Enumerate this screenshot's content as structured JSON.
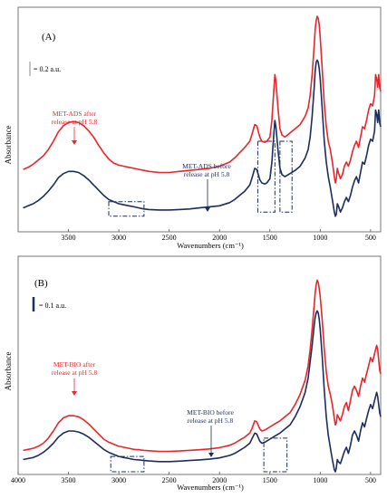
{
  "chart_data": [
    {
      "type": "line",
      "panel_label": "(A)",
      "xlabel": "Wavenumbers (cm⁻¹)",
      "ylabel": "Absorbance",
      "xlim": [
        4000,
        400
      ],
      "x_ticks": [
        3500,
        3000,
        2500,
        2000,
        1500,
        1000,
        500
      ],
      "scale_bar_label": "= 0.2 a.u.",
      "colors": {
        "after": "#e8262b",
        "before": "#1b2d5c",
        "box": "#1b2d5c"
      },
      "series": [
        {
          "key": "after",
          "label": "MET-ADS after release at pH 5.8",
          "label_lines": [
            "MET-ADS after",
            "release at pH 5.8"
          ],
          "x": [
            3950,
            3900,
            3850,
            3800,
            3750,
            3700,
            3650,
            3600,
            3550,
            3500,
            3450,
            3400,
            3350,
            3300,
            3250,
            3200,
            3150,
            3100,
            3050,
            3000,
            2950,
            2900,
            2850,
            2800,
            2750,
            2700,
            2600,
            2500,
            2400,
            2300,
            2200,
            2100,
            2000,
            1900,
            1850,
            1800,
            1750,
            1700,
            1680,
            1650,
            1630,
            1600,
            1580,
            1550,
            1530,
            1500,
            1480,
            1460,
            1450,
            1440,
            1420,
            1400,
            1380,
            1350,
            1300,
            1250,
            1200,
            1150,
            1120,
            1100,
            1080,
            1060,
            1050,
            1040,
            1030,
            1020,
            1010,
            1000,
            980,
            960,
            940,
            920,
            900,
            880,
            860,
            850,
            840,
            830,
            820,
            800,
            780,
            760,
            740,
            720,
            700,
            680,
            660,
            640,
            620,
            600,
            580,
            560,
            540,
            520,
            500,
            480,
            460,
            450,
            440,
            430,
            420,
            410,
            400
          ],
          "y": [
            0.265,
            0.275,
            0.29,
            0.31,
            0.33,
            0.36,
            0.4,
            0.445,
            0.475,
            0.49,
            0.495,
            0.49,
            0.475,
            0.45,
            0.42,
            0.38,
            0.345,
            0.315,
            0.295,
            0.285,
            0.28,
            0.275,
            0.27,
            0.265,
            0.26,
            0.255,
            0.25,
            0.25,
            0.255,
            0.26,
            0.265,
            0.27,
            0.28,
            0.3,
            0.32,
            0.345,
            0.37,
            0.4,
            0.43,
            0.48,
            0.475,
            0.42,
            0.4,
            0.395,
            0.4,
            0.42,
            0.5,
            0.65,
            0.72,
            0.69,
            0.56,
            0.46,
            0.43,
            0.42,
            0.44,
            0.46,
            0.48,
            0.52,
            0.56,
            0.62,
            0.72,
            0.86,
            0.94,
            0.98,
            1.0,
            0.99,
            0.96,
            0.9,
            0.74,
            0.58,
            0.47,
            0.4,
            0.36,
            0.3,
            0.23,
            0.2,
            0.22,
            0.27,
            0.25,
            0.22,
            0.24,
            0.28,
            0.3,
            0.28,
            0.31,
            0.35,
            0.38,
            0.4,
            0.37,
            0.42,
            0.47,
            0.46,
            0.5,
            0.55,
            0.58,
            0.57,
            0.62,
            0.72,
            0.7,
            0.66,
            0.72,
            0.66,
            0.64
          ]
        },
        {
          "key": "before",
          "label": "MET-ADS before release at pH 5.8",
          "label_lines": [
            "MET-ADS before",
            "release at pH 5.8"
          ],
          "x": [
            3950,
            3900,
            3850,
            3800,
            3750,
            3700,
            3650,
            3600,
            3550,
            3500,
            3450,
            3400,
            3350,
            3300,
            3250,
            3200,
            3150,
            3100,
            3050,
            3000,
            2950,
            2900,
            2850,
            2800,
            2750,
            2700,
            2600,
            2500,
            2400,
            2300,
            2200,
            2100,
            2000,
            1900,
            1850,
            1800,
            1750,
            1700,
            1680,
            1650,
            1630,
            1600,
            1580,
            1550,
            1530,
            1500,
            1480,
            1460,
            1450,
            1440,
            1420,
            1400,
            1380,
            1350,
            1300,
            1250,
            1200,
            1150,
            1120,
            1100,
            1080,
            1060,
            1050,
            1040,
            1030,
            1020,
            1010,
            1000,
            980,
            960,
            940,
            920,
            900,
            880,
            860,
            850,
            840,
            830,
            820,
            800,
            780,
            760,
            740,
            720,
            700,
            680,
            660,
            640,
            620,
            600,
            580,
            560,
            540,
            520,
            500,
            480,
            460,
            450,
            440,
            430,
            420,
            410,
            400
          ],
          "y": [
            0.08,
            0.09,
            0.1,
            0.115,
            0.135,
            0.16,
            0.19,
            0.225,
            0.245,
            0.255,
            0.255,
            0.25,
            0.235,
            0.215,
            0.19,
            0.165,
            0.14,
            0.12,
            0.11,
            0.1,
            0.095,
            0.09,
            0.085,
            0.08,
            0.075,
            0.072,
            0.07,
            0.07,
            0.072,
            0.075,
            0.08,
            0.085,
            0.09,
            0.105,
            0.12,
            0.14,
            0.16,
            0.19,
            0.22,
            0.27,
            0.265,
            0.215,
            0.2,
            0.195,
            0.2,
            0.22,
            0.3,
            0.44,
            0.5,
            0.47,
            0.36,
            0.27,
            0.24,
            0.23,
            0.245,
            0.26,
            0.28,
            0.32,
            0.36,
            0.42,
            0.52,
            0.66,
            0.74,
            0.78,
            0.79,
            0.78,
            0.75,
            0.7,
            0.55,
            0.4,
            0.3,
            0.23,
            0.18,
            0.12,
            0.06,
            0.04,
            0.05,
            0.1,
            0.09,
            0.06,
            0.08,
            0.11,
            0.13,
            0.11,
            0.14,
            0.18,
            0.21,
            0.23,
            0.2,
            0.25,
            0.3,
            0.29,
            0.33,
            0.38,
            0.41,
            0.4,
            0.45,
            0.55,
            0.53,
            0.49,
            0.55,
            0.49,
            0.47
          ]
        }
      ],
      "boxes": [
        {
          "x": [
            3100,
            2750
          ],
          "y": [
            0.04,
            0.11
          ]
        },
        {
          "x": [
            1620,
            1450
          ],
          "y": [
            0.06,
            0.4
          ]
        },
        {
          "x": [
            1400,
            1280
          ],
          "y": [
            0.06,
            0.4
          ]
        }
      ]
    },
    {
      "type": "line",
      "panel_label": "(B)",
      "xlabel": "Wavenumbers (cm⁻¹)",
      "ylabel": "Absorbance",
      "xlim": [
        4000,
        400
      ],
      "x_ticks": [
        4000,
        3500,
        3000,
        2500,
        2000,
        1500,
        1000,
        500
      ],
      "scale_bar_label": "= 0.1 a.u.",
      "colors": {
        "after": "#e8262b",
        "before": "#1b2d5c",
        "box": "#1b2d5c"
      },
      "series": [
        {
          "key": "after",
          "label": "MET-BIO after release at pH 5.8",
          "label_lines": [
            "MET-BIO after",
            "release at pH 5.8"
          ],
          "x": [
            3950,
            3900,
            3850,
            3800,
            3750,
            3700,
            3650,
            3600,
            3550,
            3500,
            3450,
            3400,
            3350,
            3300,
            3250,
            3200,
            3150,
            3100,
            3050,
            3000,
            2950,
            2900,
            2850,
            2800,
            2750,
            2700,
            2600,
            2500,
            2400,
            2300,
            2200,
            2100,
            2000,
            1900,
            1850,
            1800,
            1750,
            1700,
            1680,
            1650,
            1630,
            1600,
            1580,
            1550,
            1500,
            1450,
            1400,
            1350,
            1300,
            1250,
            1200,
            1150,
            1120,
            1100,
            1080,
            1060,
            1050,
            1040,
            1030,
            1020,
            1010,
            1000,
            980,
            960,
            940,
            920,
            900,
            880,
            860,
            850,
            840,
            830,
            820,
            800,
            780,
            760,
            740,
            720,
            700,
            680,
            660,
            640,
            620,
            600,
            580,
            560,
            540,
            520,
            500,
            480,
            460,
            440,
            430,
            420,
            410,
            400
          ],
          "y": [
            0.105,
            0.11,
            0.115,
            0.125,
            0.14,
            0.165,
            0.2,
            0.24,
            0.265,
            0.275,
            0.275,
            0.27,
            0.255,
            0.235,
            0.21,
            0.185,
            0.16,
            0.145,
            0.135,
            0.125,
            0.12,
            0.115,
            0.11,
            0.108,
            0.105,
            0.103,
            0.1,
            0.1,
            0.102,
            0.105,
            0.108,
            0.112,
            0.118,
            0.13,
            0.14,
            0.155,
            0.17,
            0.19,
            0.21,
            0.25,
            0.245,
            0.21,
            0.2,
            0.205,
            0.22,
            0.235,
            0.25,
            0.27,
            0.29,
            0.33,
            0.38,
            0.45,
            0.52,
            0.6,
            0.7,
            0.82,
            0.88,
            0.92,
            0.94,
            0.93,
            0.9,
            0.86,
            0.74,
            0.6,
            0.49,
            0.42,
            0.38,
            0.33,
            0.26,
            0.23,
            0.24,
            0.28,
            0.27,
            0.25,
            0.28,
            0.32,
            0.34,
            0.3,
            0.35,
            0.4,
            0.42,
            0.4,
            0.37,
            0.42,
            0.46,
            0.44,
            0.48,
            0.52,
            0.56,
            0.54,
            0.58,
            0.62,
            0.6,
            0.55,
            0.5,
            0.48
          ]
        },
        {
          "key": "before",
          "label": "MET-BIO before release at pH 5.8",
          "label_lines": [
            "MET-BIO before",
            "release at pH 5.8"
          ],
          "x": [
            3950,
            3900,
            3850,
            3800,
            3750,
            3700,
            3650,
            3600,
            3550,
            3500,
            3450,
            3400,
            3350,
            3300,
            3250,
            3200,
            3150,
            3100,
            3050,
            3000,
            2950,
            2900,
            2850,
            2800,
            2750,
            2700,
            2600,
            2500,
            2400,
            2300,
            2200,
            2100,
            2000,
            1900,
            1850,
            1800,
            1750,
            1700,
            1680,
            1650,
            1630,
            1600,
            1580,
            1550,
            1500,
            1450,
            1400,
            1350,
            1300,
            1250,
            1200,
            1150,
            1120,
            1100,
            1080,
            1060,
            1050,
            1040,
            1030,
            1020,
            1010,
            1000,
            980,
            960,
            940,
            920,
            900,
            880,
            860,
            850,
            840,
            830,
            820,
            800,
            780,
            760,
            740,
            720,
            700,
            680,
            660,
            640,
            620,
            600,
            580,
            560,
            540,
            520,
            500,
            480,
            460,
            440,
            430,
            420,
            410,
            400
          ],
          "y": [
            0.06,
            0.065,
            0.07,
            0.08,
            0.095,
            0.115,
            0.14,
            0.17,
            0.19,
            0.2,
            0.2,
            0.195,
            0.185,
            0.17,
            0.15,
            0.13,
            0.11,
            0.095,
            0.085,
            0.075,
            0.07,
            0.065,
            0.06,
            0.058,
            0.055,
            0.053,
            0.05,
            0.05,
            0.052,
            0.055,
            0.058,
            0.062,
            0.068,
            0.08,
            0.09,
            0.105,
            0.12,
            0.14,
            0.16,
            0.19,
            0.185,
            0.15,
            0.14,
            0.145,
            0.16,
            0.175,
            0.19,
            0.21,
            0.23,
            0.27,
            0.32,
            0.39,
            0.46,
            0.54,
            0.62,
            0.72,
            0.76,
            0.78,
            0.79,
            0.78,
            0.75,
            0.7,
            0.56,
            0.4,
            0.27,
            0.18,
            0.12,
            0.06,
            0.01,
            0.0,
            0.02,
            0.06,
            0.05,
            0.04,
            0.07,
            0.1,
            0.12,
            0.09,
            0.13,
            0.18,
            0.2,
            0.18,
            0.15,
            0.2,
            0.24,
            0.22,
            0.26,
            0.3,
            0.33,
            0.31,
            0.35,
            0.39,
            0.37,
            0.33,
            0.29,
            0.27
          ]
        }
      ],
      "boxes": [
        {
          "x": [
            3080,
            2750
          ],
          "y": [
            0.0,
            0.075
          ]
        },
        {
          "x": [
            1560,
            1330
          ],
          "y": [
            0.0,
            0.165
          ]
        }
      ]
    }
  ]
}
